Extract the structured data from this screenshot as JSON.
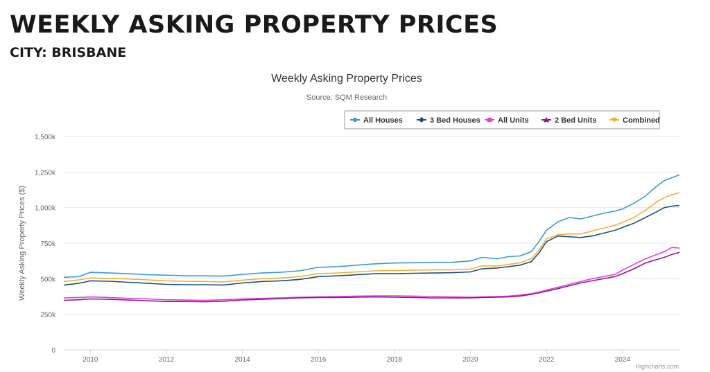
{
  "page": {
    "heading": "WEEKLY ASKING PROPERTY PRICES",
    "subheading": "CITY: BRISBANE"
  },
  "chart_data": {
    "type": "line",
    "title": "Weekly Asking Property Prices",
    "subtitle": "Source: SQM Research",
    "xlabel": "",
    "ylabel": "Weekly Asking Property Prices ($)",
    "xlim": [
      2009.3,
      2025.5
    ],
    "ylim": [
      0,
      1500000
    ],
    "x_ticks": [
      2010,
      2012,
      2014,
      2016,
      2018,
      2020,
      2022,
      2024
    ],
    "x_tick_labels": [
      "2010",
      "2012",
      "2014",
      "2016",
      "2018",
      "2020",
      "2022",
      "2024"
    ],
    "y_ticks": [
      0,
      250000,
      500000,
      750000,
      1000000,
      1250000,
      1500000
    ],
    "y_tick_labels": [
      "0",
      "250k",
      "500k",
      "750k",
      "1,000k",
      "1,250k",
      "1,500k"
    ],
    "grid": "horizontal",
    "legend_position": "top-right",
    "credit": "Highcharts.com",
    "series": [
      {
        "name": "All Houses",
        "color": "#3a9ad9",
        "marker": "circle",
        "points": [
          [
            2009.3,
            510000
          ],
          [
            2009.7,
            515000
          ],
          [
            2010.0,
            545000
          ],
          [
            2010.5,
            540000
          ],
          [
            2011.0,
            535000
          ],
          [
            2011.5,
            528000
          ],
          [
            2012.0,
            525000
          ],
          [
            2012.5,
            520000
          ],
          [
            2013.0,
            520000
          ],
          [
            2013.5,
            518000
          ],
          [
            2014.0,
            530000
          ],
          [
            2014.5,
            540000
          ],
          [
            2015.0,
            545000
          ],
          [
            2015.5,
            555000
          ],
          [
            2016.0,
            580000
          ],
          [
            2016.5,
            585000
          ],
          [
            2017.0,
            595000
          ],
          [
            2017.5,
            605000
          ],
          [
            2018.0,
            610000
          ],
          [
            2018.5,
            612000
          ],
          [
            2019.0,
            615000
          ],
          [
            2019.5,
            615000
          ],
          [
            2020.0,
            625000
          ],
          [
            2020.3,
            650000
          ],
          [
            2020.7,
            640000
          ],
          [
            2021.0,
            655000
          ],
          [
            2021.3,
            660000
          ],
          [
            2021.6,
            690000
          ],
          [
            2021.8,
            760000
          ],
          [
            2022.0,
            840000
          ],
          [
            2022.3,
            900000
          ],
          [
            2022.6,
            930000
          ],
          [
            2022.9,
            920000
          ],
          [
            2023.2,
            940000
          ],
          [
            2023.5,
            960000
          ],
          [
            2023.8,
            975000
          ],
          [
            2024.0,
            990000
          ],
          [
            2024.3,
            1030000
          ],
          [
            2024.6,
            1080000
          ],
          [
            2024.9,
            1150000
          ],
          [
            2025.1,
            1190000
          ],
          [
            2025.3,
            1210000
          ],
          [
            2025.5,
            1230000
          ]
        ]
      },
      {
        "name": "3 Bed Houses",
        "color": "#1b4f7f",
        "marker": "diamond",
        "points": [
          [
            2009.3,
            455000
          ],
          [
            2009.7,
            468000
          ],
          [
            2010.0,
            485000
          ],
          [
            2010.5,
            482000
          ],
          [
            2011.0,
            475000
          ],
          [
            2011.5,
            468000
          ],
          [
            2012.0,
            460000
          ],
          [
            2012.5,
            458000
          ],
          [
            2013.0,
            458000
          ],
          [
            2013.5,
            456000
          ],
          [
            2014.0,
            470000
          ],
          [
            2014.5,
            480000
          ],
          [
            2015.0,
            485000
          ],
          [
            2015.5,
            495000
          ],
          [
            2016.0,
            515000
          ],
          [
            2016.5,
            520000
          ],
          [
            2017.0,
            528000
          ],
          [
            2017.5,
            535000
          ],
          [
            2018.0,
            535000
          ],
          [
            2018.5,
            538000
          ],
          [
            2019.0,
            540000
          ],
          [
            2019.5,
            542000
          ],
          [
            2020.0,
            548000
          ],
          [
            2020.3,
            570000
          ],
          [
            2020.7,
            575000
          ],
          [
            2021.0,
            585000
          ],
          [
            2021.3,
            595000
          ],
          [
            2021.6,
            620000
          ],
          [
            2021.8,
            680000
          ],
          [
            2022.0,
            760000
          ],
          [
            2022.3,
            800000
          ],
          [
            2022.6,
            795000
          ],
          [
            2022.9,
            790000
          ],
          [
            2023.2,
            800000
          ],
          [
            2023.5,
            820000
          ],
          [
            2023.8,
            840000
          ],
          [
            2024.0,
            860000
          ],
          [
            2024.3,
            890000
          ],
          [
            2024.6,
            930000
          ],
          [
            2024.9,
            970000
          ],
          [
            2025.1,
            1000000
          ],
          [
            2025.3,
            1010000
          ],
          [
            2025.5,
            1015000
          ]
        ]
      },
      {
        "name": "All Units",
        "color": "#e040e0",
        "marker": "square",
        "points": [
          [
            2009.3,
            365000
          ],
          [
            2009.7,
            368000
          ],
          [
            2010.0,
            372000
          ],
          [
            2010.5,
            368000
          ],
          [
            2011.0,
            362000
          ],
          [
            2011.5,
            358000
          ],
          [
            2012.0,
            352000
          ],
          [
            2012.5,
            350000
          ],
          [
            2013.0,
            348000
          ],
          [
            2013.5,
            352000
          ],
          [
            2014.0,
            358000
          ],
          [
            2014.5,
            362000
          ],
          [
            2015.0,
            365000
          ],
          [
            2015.5,
            370000
          ],
          [
            2016.0,
            372000
          ],
          [
            2016.5,
            375000
          ],
          [
            2017.0,
            378000
          ],
          [
            2017.5,
            380000
          ],
          [
            2018.0,
            380000
          ],
          [
            2018.5,
            378000
          ],
          [
            2019.0,
            375000
          ],
          [
            2019.5,
            372000
          ],
          [
            2020.0,
            370000
          ],
          [
            2020.3,
            372000
          ],
          [
            2020.7,
            375000
          ],
          [
            2021.0,
            378000
          ],
          [
            2021.3,
            385000
          ],
          [
            2021.6,
            395000
          ],
          [
            2021.8,
            405000
          ],
          [
            2022.0,
            420000
          ],
          [
            2022.3,
            440000
          ],
          [
            2022.6,
            460000
          ],
          [
            2022.9,
            480000
          ],
          [
            2023.2,
            500000
          ],
          [
            2023.5,
            515000
          ],
          [
            2023.8,
            530000
          ],
          [
            2024.0,
            560000
          ],
          [
            2024.3,
            600000
          ],
          [
            2024.6,
            640000
          ],
          [
            2024.9,
            670000
          ],
          [
            2025.1,
            690000
          ],
          [
            2025.3,
            720000
          ],
          [
            2025.5,
            715000
          ]
        ]
      },
      {
        "name": "2 Bed Units",
        "color": "#8c1d8c",
        "marker": "triangle",
        "points": [
          [
            2009.3,
            348000
          ],
          [
            2009.7,
            352000
          ],
          [
            2010.0,
            358000
          ],
          [
            2010.5,
            355000
          ],
          [
            2011.0,
            350000
          ],
          [
            2011.5,
            345000
          ],
          [
            2012.0,
            340000
          ],
          [
            2012.5,
            340000
          ],
          [
            2013.0,
            338000
          ],
          [
            2013.5,
            342000
          ],
          [
            2014.0,
            350000
          ],
          [
            2014.5,
            355000
          ],
          [
            2015.0,
            360000
          ],
          [
            2015.5,
            365000
          ],
          [
            2016.0,
            368000
          ],
          [
            2016.5,
            368000
          ],
          [
            2017.0,
            370000
          ],
          [
            2017.5,
            372000
          ],
          [
            2018.0,
            370000
          ],
          [
            2018.5,
            368000
          ],
          [
            2019.0,
            365000
          ],
          [
            2019.5,
            365000
          ],
          [
            2020.0,
            365000
          ],
          [
            2020.3,
            368000
          ],
          [
            2020.7,
            370000
          ],
          [
            2021.0,
            372000
          ],
          [
            2021.3,
            378000
          ],
          [
            2021.6,
            390000
          ],
          [
            2021.8,
            400000
          ],
          [
            2022.0,
            412000
          ],
          [
            2022.3,
            430000
          ],
          [
            2022.6,
            450000
          ],
          [
            2022.9,
            470000
          ],
          [
            2023.2,
            485000
          ],
          [
            2023.5,
            500000
          ],
          [
            2023.8,
            515000
          ],
          [
            2024.0,
            535000
          ],
          [
            2024.3,
            570000
          ],
          [
            2024.6,
            610000
          ],
          [
            2024.9,
            635000
          ],
          [
            2025.1,
            650000
          ],
          [
            2025.3,
            670000
          ],
          [
            2025.5,
            685000
          ]
        ]
      },
      {
        "name": "Combined",
        "color": "#f2b134",
        "marker": "triangle-down",
        "points": [
          [
            2009.3,
            480000
          ],
          [
            2009.7,
            492000
          ],
          [
            2010.0,
            505000
          ],
          [
            2010.5,
            502000
          ],
          [
            2011.0,
            498000
          ],
          [
            2011.5,
            492000
          ],
          [
            2012.0,
            485000
          ],
          [
            2012.5,
            482000
          ],
          [
            2013.0,
            480000
          ],
          [
            2013.5,
            478000
          ],
          [
            2014.0,
            490000
          ],
          [
            2014.5,
            500000
          ],
          [
            2015.0,
            505000
          ],
          [
            2015.5,
            515000
          ],
          [
            2016.0,
            535000
          ],
          [
            2016.5,
            540000
          ],
          [
            2017.0,
            548000
          ],
          [
            2017.5,
            555000
          ],
          [
            2018.0,
            558000
          ],
          [
            2018.5,
            560000
          ],
          [
            2019.0,
            562000
          ],
          [
            2019.5,
            562000
          ],
          [
            2020.0,
            568000
          ],
          [
            2020.3,
            590000
          ],
          [
            2020.7,
            590000
          ],
          [
            2021.0,
            600000
          ],
          [
            2021.3,
            612000
          ],
          [
            2021.6,
            640000
          ],
          [
            2021.8,
            700000
          ],
          [
            2022.0,
            780000
          ],
          [
            2022.3,
            810000
          ],
          [
            2022.6,
            815000
          ],
          [
            2022.9,
            815000
          ],
          [
            2023.2,
            835000
          ],
          [
            2023.5,
            855000
          ],
          [
            2023.8,
            875000
          ],
          [
            2024.0,
            895000
          ],
          [
            2024.3,
            930000
          ],
          [
            2024.6,
            980000
          ],
          [
            2024.9,
            1040000
          ],
          [
            2025.1,
            1070000
          ],
          [
            2025.3,
            1090000
          ],
          [
            2025.5,
            1105000
          ]
        ]
      }
    ]
  }
}
